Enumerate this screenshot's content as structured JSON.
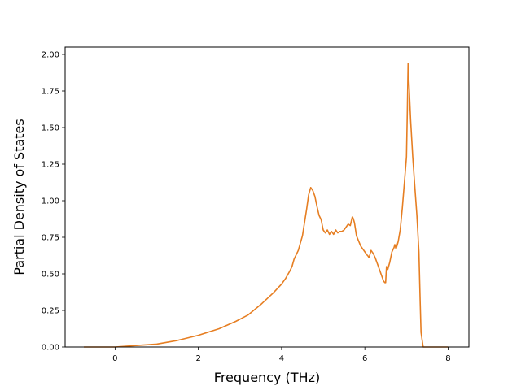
{
  "chart_data": {
    "type": "line",
    "title": "",
    "xlabel": "Frequency (THz)",
    "ylabel": "Partial Density of States",
    "xlim": [
      -1.2,
      8.5
    ],
    "ylim": [
      0.0,
      2.05
    ],
    "xticks": [
      0,
      2,
      4,
      6,
      8
    ],
    "xtick_labels": [
      "0",
      "2",
      "4",
      "6",
      "8"
    ],
    "yticks": [
      0.0,
      0.25,
      0.5,
      0.75,
      1.0,
      1.25,
      1.5,
      1.75,
      2.0
    ],
    "ytick_labels": [
      "0.00",
      "0.25",
      "0.50",
      "0.75",
      "1.00",
      "1.25",
      "1.50",
      "1.75",
      "2.00"
    ],
    "grid": false,
    "legend": "none",
    "series": [
      {
        "color": "#e67e22",
        "x": [
          -0.75,
          -0.5,
          0.0,
          0.5,
          1.0,
          1.5,
          2.0,
          2.5,
          2.9,
          3.0,
          3.2,
          3.5,
          3.8,
          4.0,
          4.1,
          4.2,
          4.25,
          4.3,
          4.4,
          4.5,
          4.6,
          4.65,
          4.7,
          4.75,
          4.8,
          4.85,
          4.9,
          4.95,
          5.0,
          5.05,
          5.1,
          5.15,
          5.2,
          5.25,
          5.3,
          5.35,
          5.4,
          5.45,
          5.5,
          5.55,
          5.6,
          5.65,
          5.7,
          5.72,
          5.75,
          5.8,
          5.9,
          6.0,
          6.05,
          6.08,
          6.1,
          6.15,
          6.2,
          6.25,
          6.3,
          6.35,
          6.4,
          6.45,
          6.48,
          6.5,
          6.52,
          6.55,
          6.6,
          6.65,
          6.7,
          6.72,
          6.75,
          6.8,
          6.85,
          6.9,
          6.95,
          7.0,
          7.02,
          7.04,
          7.06,
          7.1,
          7.15,
          7.2,
          7.25,
          7.3,
          7.33,
          7.35,
          7.4,
          7.5,
          7.8,
          8.0
        ],
        "y": [
          0.0,
          0.0,
          0.0,
          0.01,
          0.02,
          0.045,
          0.08,
          0.125,
          0.175,
          0.19,
          0.22,
          0.29,
          0.37,
          0.43,
          0.47,
          0.52,
          0.55,
          0.6,
          0.66,
          0.76,
          0.94,
          1.04,
          1.09,
          1.07,
          1.03,
          0.96,
          0.9,
          0.87,
          0.8,
          0.78,
          0.8,
          0.77,
          0.79,
          0.77,
          0.8,
          0.78,
          0.79,
          0.79,
          0.8,
          0.82,
          0.84,
          0.83,
          0.89,
          0.88,
          0.85,
          0.76,
          0.69,
          0.65,
          0.63,
          0.62,
          0.61,
          0.66,
          0.64,
          0.61,
          0.57,
          0.53,
          0.49,
          0.45,
          0.44,
          0.44,
          0.55,
          0.53,
          0.58,
          0.65,
          0.68,
          0.7,
          0.67,
          0.72,
          0.8,
          0.95,
          1.12,
          1.3,
          1.6,
          1.94,
          1.8,
          1.55,
          1.3,
          1.1,
          0.9,
          0.65,
          0.3,
          0.1,
          0.0,
          0.0,
          0.0,
          0.0
        ]
      }
    ]
  }
}
